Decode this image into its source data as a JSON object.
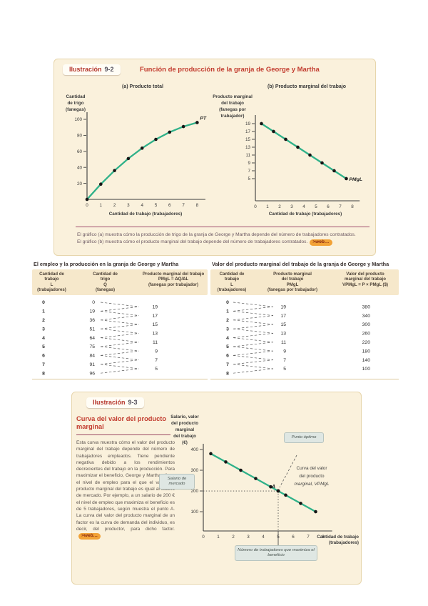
{
  "figure92": {
    "badge_label": "Ilustración",
    "badge_number": "9-2",
    "title": "Función de producción de la granja de George y Martha",
    "caption": "El gráfico (a) muestra cómo la producción de trigo de la granja de George y Martha depende del número de trabajadores contratados.\nEl gráfico (b) muestra cómo el producto marginal del trabajo depende del número de trabajadores contratados.",
    "web_link": ">web…"
  },
  "chart_data": [
    {
      "id": "pt",
      "type": "line",
      "title": "(a) Producto total",
      "ylabel_lines": "Cantidad\nde trigo\n(fanegas)",
      "xlabel": "Cantidad de trabajo (trabajadores)",
      "x": [
        0,
        1,
        2,
        3,
        4,
        5,
        6,
        7,
        8
      ],
      "y": [
        0,
        19,
        36,
        51,
        64,
        75,
        84,
        91,
        96
      ],
      "yticks": [
        20,
        40,
        60,
        80,
        100
      ],
      "xticks": [
        0,
        1,
        2,
        3,
        4,
        5,
        6,
        7,
        8
      ],
      "xlim": [
        0,
        8.6
      ],
      "ylim": [
        0,
        110
      ],
      "curve_label": "PT",
      "line_color": "#2fb189",
      "grid": false
    },
    {
      "id": "pmgl",
      "type": "line",
      "title": "(b) Producto marginal del trabajo",
      "ylabel_lines": "Producto marginal\ndel trabajo\n(fanegas por\ntrabajador)",
      "xlabel": "Cantidad de trabajo (trabajadores)",
      "x": [
        0.5,
        1.5,
        2.5,
        3.5,
        4.5,
        5.5,
        6.5,
        7.5
      ],
      "y": [
        19,
        17,
        15,
        13,
        11,
        9,
        7,
        5
      ],
      "yticks": [
        19,
        17,
        15,
        13,
        11,
        9,
        7,
        5
      ],
      "xticks": [
        0,
        1,
        2,
        3,
        4,
        5,
        6,
        7,
        8
      ],
      "xlim": [
        0,
        8.6
      ],
      "ylim": [
        3,
        20
      ],
      "curve_label": "PMgL",
      "line_color": "#2fb189",
      "grid": false
    },
    {
      "id": "vpmgl",
      "type": "line",
      "title": "",
      "ylabel_lines": "Salario, valor\ndel producto\nmarginal\ndel trabajo\n(€)",
      "xlabel_lines": "Cantidad de trabajo\n(trabajadores)",
      "x": [
        0.5,
        1.5,
        2.5,
        3.5,
        4.5,
        5.5,
        6.5,
        7.5
      ],
      "y": [
        380,
        340,
        300,
        260,
        220,
        180,
        140,
        100
      ],
      "yticks": [
        100,
        200,
        300,
        400
      ],
      "xticks": [
        0,
        1,
        2,
        3,
        4,
        5,
        6,
        7,
        8
      ],
      "xlim": [
        0,
        8.6
      ],
      "ylim": [
        0,
        460
      ],
      "curve_label_lines": [
        "Curva del valor",
        "del producto",
        "marginal, VPMgL"
      ],
      "point": {
        "x": 5,
        "y": 200,
        "label": "A"
      },
      "line_color": "#2fb189",
      "grid": false
    }
  ],
  "tables": {
    "left": {
      "title": "El empleo y la producción en la granja de George y Martha",
      "headers": [
        "Cantidad de\ntrabajo\nL\n(trabajadores)",
        "Cantidad de\ntrigo\nQ\n(fanegas)",
        "Producto marginal del trabajo\nPMgL = ΔQ/ΔL\n(fanegas por trabajador)"
      ],
      "labor": [
        0,
        1,
        2,
        3,
        4,
        5,
        6,
        7,
        8
      ],
      "wheat": [
        0,
        19,
        36,
        51,
        64,
        75,
        84,
        91,
        96
      ],
      "mpl": [
        19,
        17,
        15,
        13,
        11,
        9,
        7,
        5
      ]
    },
    "right": {
      "title": "Valor del producto marginal del trabajo de la granja de George y Martha",
      "headers": [
        "Cantidad de\ntrabajo\nL\n(trabajadores)",
        "Producto marginal\ndel trabajo\nPMgL\n(fanegas por trabajador)",
        "Valor del producto\nmarginal del trabajo\nVPMgL = P × PMgL ($)"
      ],
      "labor": [
        0,
        1,
        2,
        3,
        4,
        5,
        6,
        7,
        8
      ],
      "mpl": [
        19,
        17,
        15,
        13,
        11,
        9,
        7,
        5
      ],
      "vmpl": [
        380,
        340,
        300,
        260,
        220,
        180,
        140,
        100
      ]
    }
  },
  "figure93": {
    "badge_label": "Ilustración",
    "badge_number": "9-3",
    "title": "Curva del valor del producto marginal",
    "paragraph": "Esta curva muestra cómo el valor del producto marginal del trabajo depende del número de trabajadores empleados. Tiene pendiente negativa debido a los rendimientos decrecientes del trabajo en la producción. Para maximizar el beneficio, George y Martha eligen el nivel de empleo para el que el valor del producto marginal del trabajo es igual al salario de mercado. Por ejemplo, a un salario de 200 € el nivel de empleo que maximiza el beneficio es de 5 trabajadores, según muestra el punto A. La curva del valor del producto marginal de un factor es la curva de demanda del individuo, es decir, del productor, para dicho factor.",
    "web_link": ">web…",
    "callout_optimal": "Punto óptimo",
    "callout_wage": "Salario de mercado",
    "callout_workers": "Número de trabajadores que maximiza el beneficio"
  },
  "colors": {
    "accent_red": "#c23b2e",
    "rule_maroon": "#9c4a63",
    "curve_green": "#2fb189",
    "panel_cream": "#faf1dc",
    "web_orange": "#f2a236"
  }
}
